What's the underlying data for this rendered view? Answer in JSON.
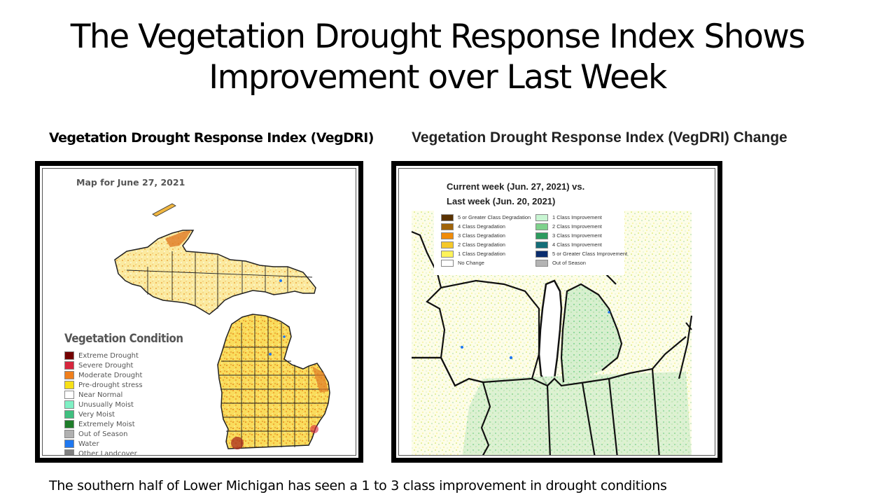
{
  "slide": {
    "title_line1": "The Vegetation Drought Response Index Shows",
    "title_line2": "Improvement over Last Week",
    "left_heading": "Vegetation Drought Response Index (VegDRI)",
    "right_heading": "Vegetation Drought Response Index (VegDRI) Change",
    "caption": "The southern half of Lower Michigan has seen a 1 to 3 class improvement in drought conditions"
  },
  "left_map": {
    "map_label": "Map for June 27, 2021",
    "legend_title": "Vegetation Condition",
    "legend": [
      {
        "label": "Extreme Drought",
        "color": "#730000"
      },
      {
        "label": "Severe Drought",
        "color": "#d7263d"
      },
      {
        "label": "Moderate Drought",
        "color": "#f07f1c"
      },
      {
        "label": "Pre-drought stress",
        "color": "#f7e017"
      },
      {
        "label": "Near Normal",
        "color": "#ffffff"
      },
      {
        "label": "Unusually Moist",
        "color": "#7ff0c4"
      },
      {
        "label": "Very Moist",
        "color": "#3fbf7f"
      },
      {
        "label": "Extremely Moist",
        "color": "#1e7d2a"
      },
      {
        "label": "Out of Season",
        "color": "#b0b0b0"
      },
      {
        "label": "Water",
        "color": "#1f78f0"
      },
      {
        "label": "Other Landcover",
        "color": "#808080"
      }
    ]
  },
  "right_map": {
    "title_line1": "Current week (Jun. 27, 2021) vs.",
    "title_line2": "Last week (Jun. 20, 2021)",
    "legend_col1": [
      {
        "label": "5 or Greater Class Degradation",
        "color": "#5a3200"
      },
      {
        "label": "4 Class Degradation",
        "color": "#a0640a"
      },
      {
        "label": "3 Class Degradation",
        "color": "#f08c0a"
      },
      {
        "label": "2 Class Degradation",
        "color": "#f5c828"
      },
      {
        "label": "1 Class Degradation",
        "color": "#fff35a"
      },
      {
        "label": "No Change",
        "color": "#ffffff"
      }
    ],
    "legend_col2": [
      {
        "label": "1 Class Improvement",
        "color": "#c8f5d2"
      },
      {
        "label": "2 Class Improvement",
        "color": "#7ed28c"
      },
      {
        "label": "3 Class Improvement",
        "color": "#2d9b5f"
      },
      {
        "label": "4 Class Improvement",
        "color": "#146e78"
      },
      {
        "label": "5 or Greater Class Improvement",
        "color": "#0a2d6e"
      },
      {
        "label": "Out of Season",
        "color": "#b4b4b4"
      }
    ]
  }
}
